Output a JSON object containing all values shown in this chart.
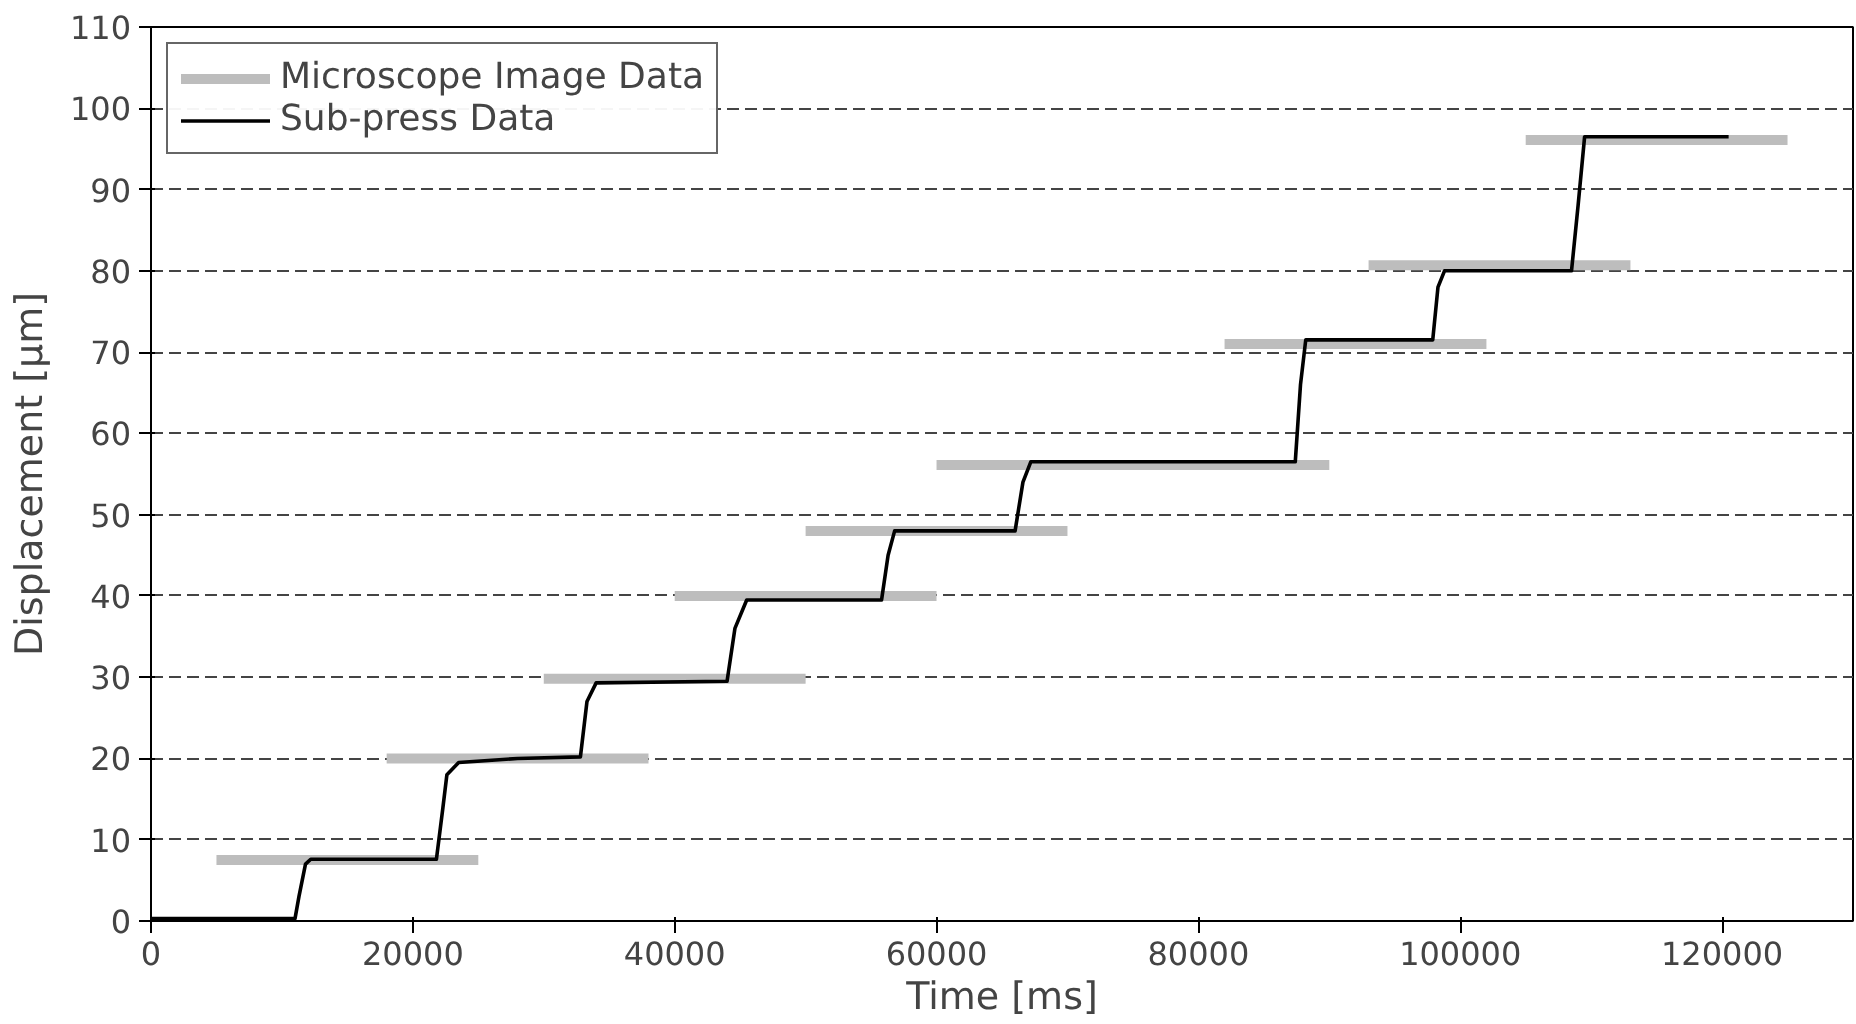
{
  "chart_data": {
    "type": "line",
    "xlabel": "Time [ms]",
    "ylabel": "Displacement [μm]",
    "xlim": [
      0,
      130000
    ],
    "ylim": [
      0,
      110
    ],
    "xticks": [
      0,
      20000,
      40000,
      60000,
      80000,
      100000,
      120000
    ],
    "yticks": [
      0,
      10,
      20,
      30,
      40,
      50,
      60,
      70,
      80,
      90,
      100,
      110
    ],
    "grid": "y",
    "legend": "top left",
    "line_style": "solid",
    "series": [
      {
        "name": "Microscope Image Data",
        "color": "#bdbdbd",
        "x": [
          5000,
          25000
        ],
        "values": [
          7.5,
          7.5
        ]
      },
      {
        "color": "#bdbdbd",
        "x": [
          18000,
          38000
        ],
        "values": [
          20,
          20
        ]
      },
      {
        "color": "#bdbdbd",
        "x": [
          30000,
          50000
        ],
        "values": [
          29.8,
          29.8
        ]
      },
      {
        "color": "#bdbdbd",
        "x": [
          40000,
          60000
        ],
        "values": [
          40,
          40
        ]
      },
      {
        "color": "#bdbdbd",
        "x": [
          50000,
          70000
        ],
        "values": [
          48,
          48
        ]
      },
      {
        "color": "#bdbdbd",
        "x": [
          60000,
          90000
        ],
        "values": [
          56.1,
          56.1
        ]
      },
      {
        "color": "#bdbdbd",
        "x": [
          82000,
          102000
        ],
        "values": [
          71,
          71
        ]
      },
      {
        "color": "#bdbdbd",
        "x": [
          93000,
          113000
        ],
        "values": [
          80.7,
          80.7
        ]
      },
      {
        "color": "#bdbdbd",
        "x": [
          105000,
          125000
        ],
        "values": [
          96.1,
          96.1
        ]
      },
      {
        "name": "Sub-press Data",
        "color": "#000000",
        "x": [
          0,
          11000,
          11300,
          11800,
          12200,
          21800,
          22300,
          22600,
          23500,
          28000,
          32800,
          33300,
          34000,
          44000,
          44600,
          45500,
          55800,
          56300,
          56800,
          66000,
          66600,
          67200,
          87400,
          87800,
          88200,
          97900,
          98300,
          98800,
          108500,
          109000,
          109500,
          120500
        ],
        "values": [
          0.3,
          0.3,
          3,
          7,
          7.6,
          7.6,
          14,
          18,
          19.5,
          20,
          20.2,
          27,
          29.3,
          29.5,
          36,
          39.5,
          39.5,
          45,
          48,
          48,
          54,
          56.5,
          56.5,
          66,
          71.5,
          71.5,
          78,
          80,
          80,
          88,
          96.5,
          96.5
        ]
      }
    ]
  }
}
